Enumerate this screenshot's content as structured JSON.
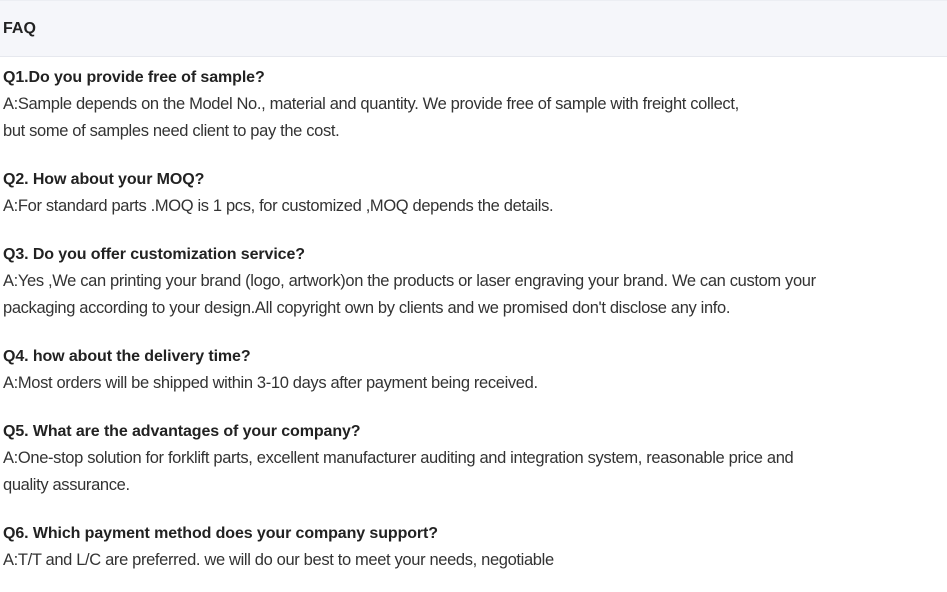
{
  "header": {
    "title": "FAQ"
  },
  "faq": [
    {
      "q": "Q1.Do you provide free of sample?",
      "a": [
        "A:Sample depends on the Model No., material and quantity. We provide free of sample with freight collect,",
        "but some of samples need client to pay the cost."
      ]
    },
    {
      "q": "Q2. How about your MOQ?",
      "a": [
        "A:For standard parts .MOQ is 1 pcs, for customized ,MOQ depends the details."
      ]
    },
    {
      "q": "Q3. Do you offer customization service?",
      "a": [
        "A:Yes ,We can printing your brand (logo, artwork)on the products or laser engraving your brand. We can custom your",
        "packaging according to your design.All copyright own by clients and we promised don't disclose any info."
      ]
    },
    {
      "q": "Q4. how about the delivery time?",
      "a": [
        "A:Most orders will be shipped within 3-10 days after payment being received."
      ]
    },
    {
      "q": "Q5. What are the advantages of your company?",
      "a": [
        "A:One-stop solution for forklift parts, excellent manufacturer auditing and integration system, reasonable price and",
        "quality assurance."
      ]
    },
    {
      "q": "Q6. Which payment method does your company support?",
      "a": [
        "A:T/T and L/C are preferred. we will do our best to meet your needs, negotiable"
      ]
    }
  ]
}
